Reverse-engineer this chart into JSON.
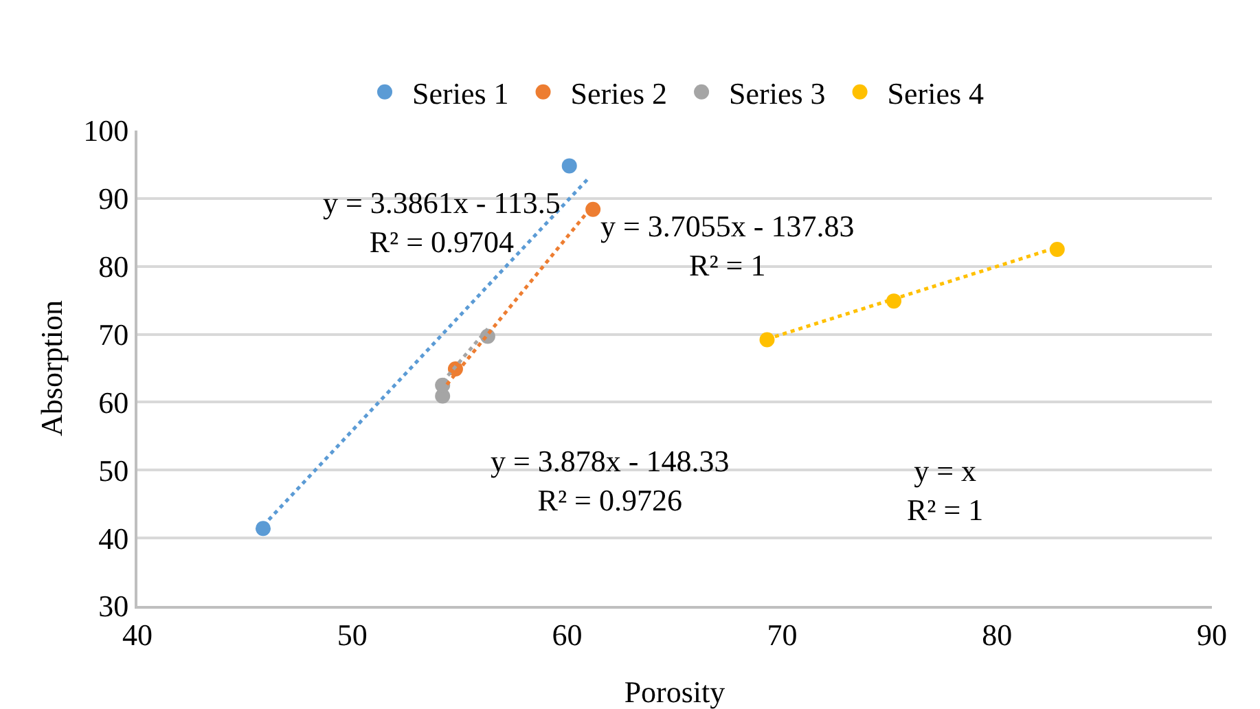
{
  "chart_data": {
    "type": "scatter",
    "xlabel": "Porosity",
    "ylabel": "Absorption",
    "xlim": [
      40,
      90
    ],
    "xticks": [
      40,
      50,
      60,
      70,
      80,
      90
    ],
    "ylim": [
      30,
      100
    ],
    "yticks": [
      30,
      40,
      50,
      60,
      70,
      80,
      90,
      100
    ],
    "grid": "y",
    "legend": "top",
    "marker": "circle",
    "series": [
      {
        "name": "Series 1",
        "color": "#5b9bd5",
        "x": [
          45.85,
          60.1
        ],
        "values": [
          41.4,
          94.8
        ]
      },
      {
        "name": "Series 2",
        "color": "#ed7d31",
        "x": [
          54.8,
          61.2
        ],
        "values": [
          64.9,
          88.4
        ]
      },
      {
        "name": "Series 3",
        "color": "#a5a5a5",
        "x": [
          54.2,
          54.2,
          56.3
        ],
        "values": [
          60.9,
          62.5,
          69.7
        ]
      },
      {
        "name": "Series 4",
        "color": "#ffc000",
        "x": [
          69.3,
          75.2,
          82.8
        ],
        "values": [
          69.2,
          74.9,
          82.5
        ]
      },
      {
        "type": "line",
        "color": "#5b9bd5",
        "line_style": "dotted",
        "marker": "none",
        "x": [
          45.85,
          61
        ],
        "values": [
          41.8,
          93.0
        ]
      },
      {
        "type": "line",
        "color": "#ed7d31",
        "line_style": "dotted",
        "marker": "none",
        "x": [
          54.4,
          61.2
        ],
        "values": [
          62.6,
          89.0
        ]
      },
      {
        "type": "line",
        "color": "#a5a5a5",
        "line_style": "dotted",
        "marker": "none",
        "x": [
          54.2,
          56.3
        ],
        "values": [
          63.0,
          70.8
        ]
      },
      {
        "type": "line",
        "color": "#ffc000",
        "line_style": "dotted",
        "marker": "none",
        "x": [
          69.3,
          82.8
        ],
        "values": [
          69.3,
          82.8
        ]
      }
    ],
    "annotations": [
      "y = 3.3861x - 113.5\nR² = 0.9704",
      "y = 3.7055x - 137.83\nR² = 1",
      "y = 3.878x - 148.33\nR² = 0.9726",
      "y = x\nR² = 1"
    ]
  }
}
